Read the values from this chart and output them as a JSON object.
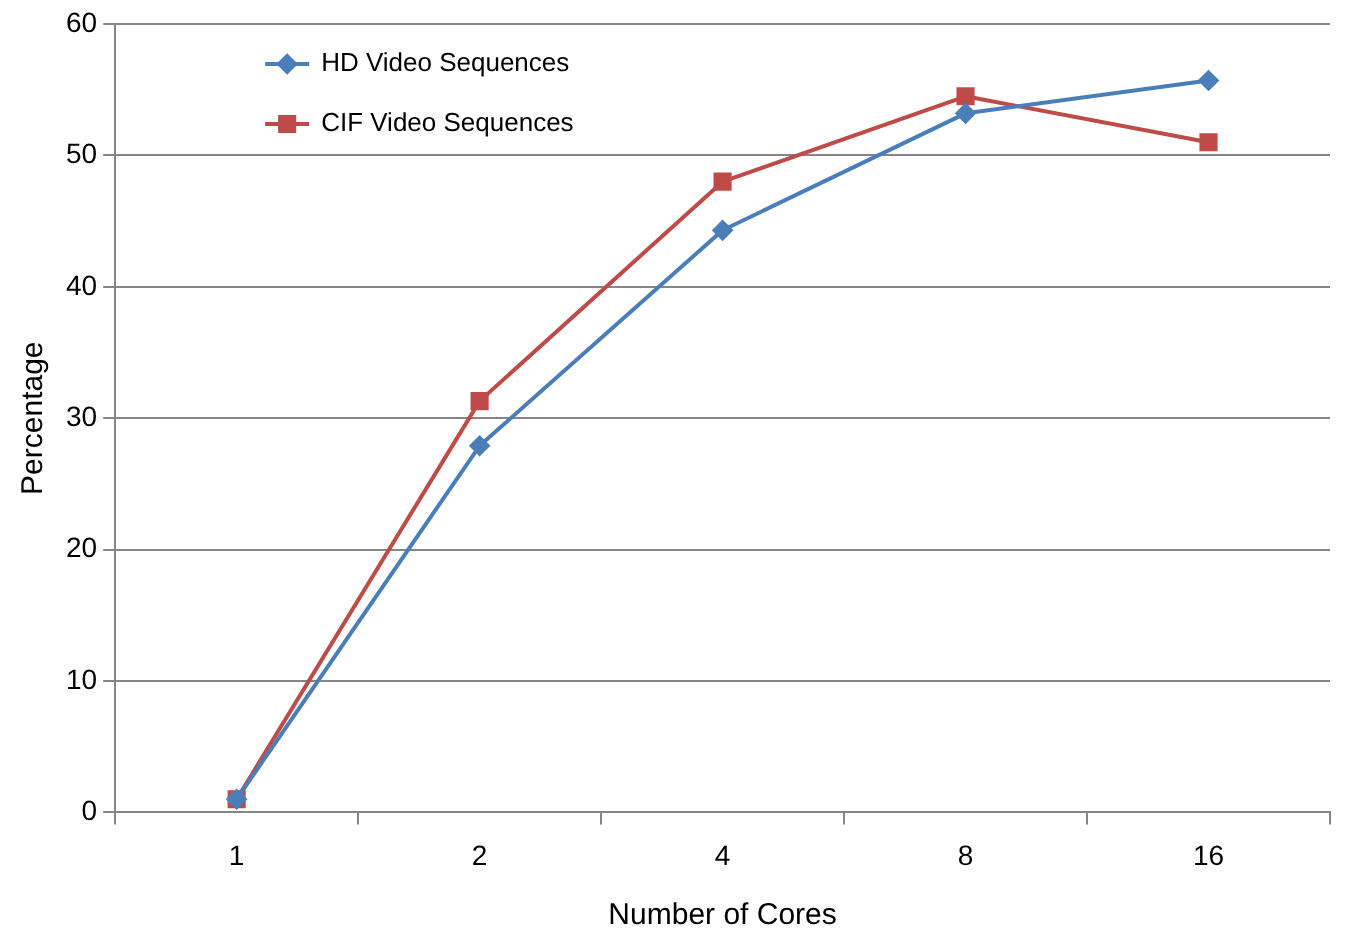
{
  "chart_data": {
    "type": "line",
    "xlabel": "Number of Cores",
    "ylabel": "Percentage",
    "categories": [
      "1",
      "2",
      "4",
      "8",
      "16"
    ],
    "series": [
      {
        "name": "HD Video Sequences",
        "color": "#4a7ebb",
        "marker": "diamond",
        "values": [
          1,
          27.9,
          44.3,
          53.2,
          55.7
        ]
      },
      {
        "name": "CIF Video Sequences",
        "color": "#be4b48",
        "marker": "square",
        "values": [
          1,
          31.3,
          48,
          54.5,
          51
        ]
      }
    ],
    "ylim": [
      0,
      60
    ],
    "yticks": [
      0,
      10,
      20,
      30,
      40,
      50,
      60
    ],
    "grid": "y",
    "legend": "top left"
  }
}
